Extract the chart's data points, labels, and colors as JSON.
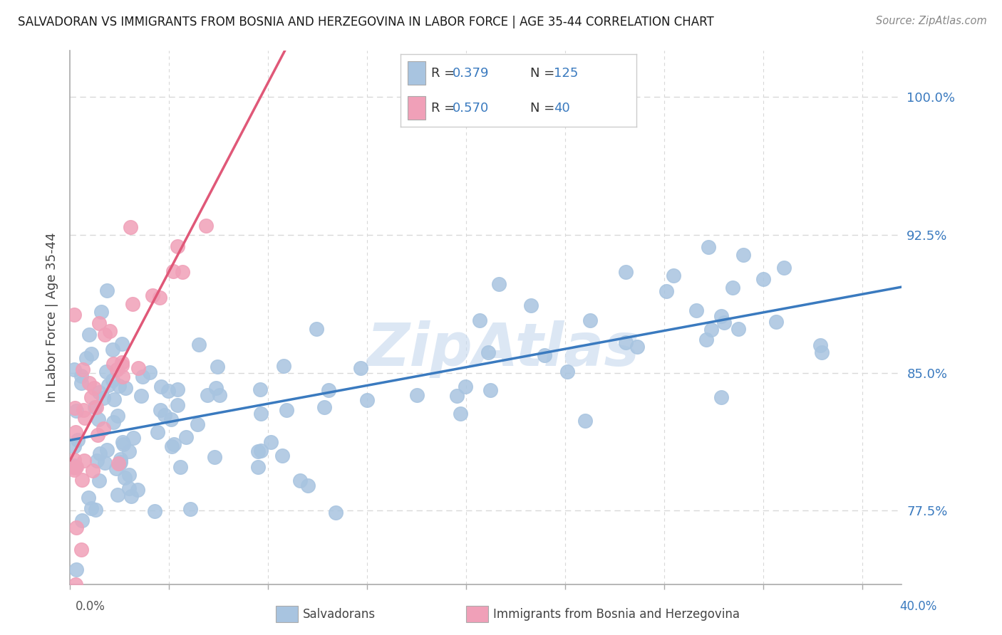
{
  "title": "SALVADORAN VS IMMIGRANTS FROM BOSNIA AND HERZEGOVINA IN LABOR FORCE | AGE 35-44 CORRELATION CHART",
  "source": "Source: ZipAtlas.com",
  "ylabel": "In Labor Force | Age 35-44",
  "xlim": [
    0.0,
    0.42
  ],
  "ylim": [
    0.735,
    1.025
  ],
  "blue_R": 0.379,
  "blue_N": 125,
  "pink_R": 0.57,
  "pink_N": 40,
  "scatter_blue_color": "#a8c4e0",
  "scatter_pink_color": "#f0a0b8",
  "line_blue_color": "#3a7abf",
  "line_pink_color": "#e05878",
  "watermark": "ZipAtlas",
  "watermark_color": "#c5d8ee",
  "legend_val_color": "#3a7abf",
  "background_color": "#ffffff",
  "grid_color": "#d8d8d8",
  "y_ticks": [
    0.775,
    0.85,
    0.925,
    1.0
  ],
  "y_tick_labels": [
    "77.5%",
    "85.0%",
    "92.5%",
    "100.0%"
  ]
}
